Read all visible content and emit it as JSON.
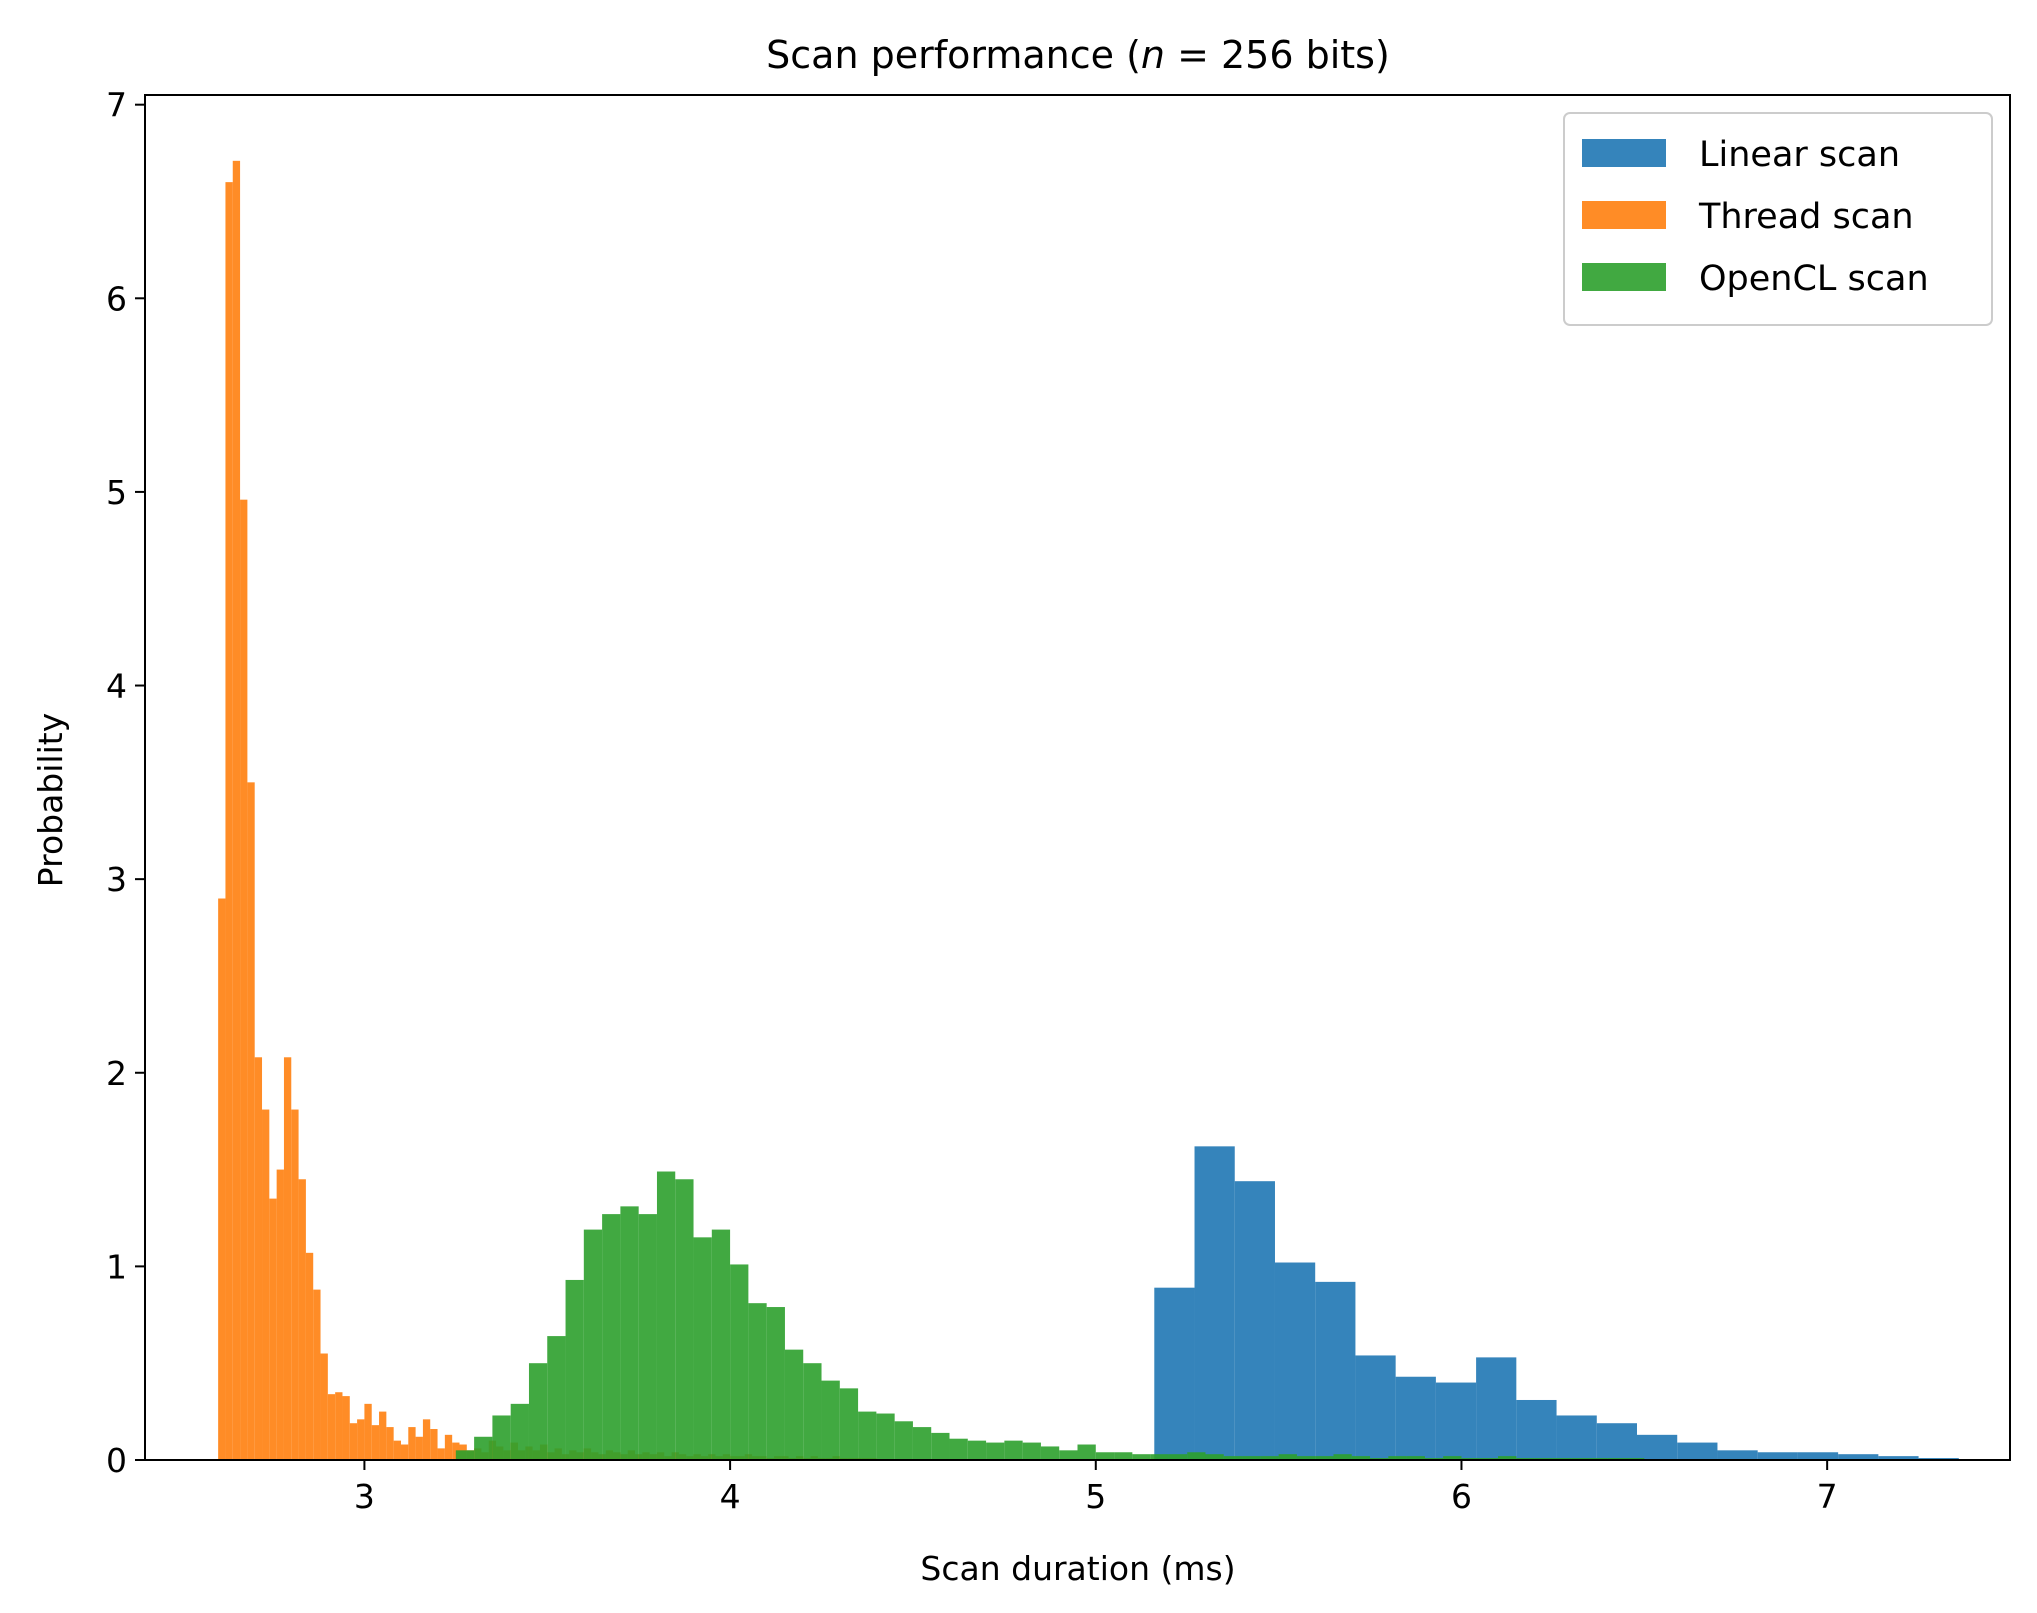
{
  "chart_data": {
    "type": "histogram",
    "title": "Scan performance (n = 256 bits)",
    "title_parts": {
      "prefix": "Scan performance (",
      "variable": "n",
      "suffix": " = 256 bits)"
    },
    "xlabel": "Scan duration (ms)",
    "ylabel": "Probability",
    "xlim": [
      2.4,
      7.5
    ],
    "ylim": [
      0,
      7.05
    ],
    "xticks": [
      3,
      4,
      5,
      6,
      7
    ],
    "yticks": [
      0,
      1,
      2,
      3,
      4,
      5,
      6,
      7
    ],
    "grid": false,
    "legend_position": "top-right",
    "series": [
      {
        "name": "Linear scan",
        "color": "#1f77b4",
        "bin_edges": [
          5.16,
          5.27,
          5.38,
          5.49,
          5.6,
          5.71,
          5.82,
          5.93,
          6.04,
          6.15,
          6.26,
          6.37,
          6.48,
          6.59,
          6.7,
          6.81,
          6.92,
          7.03,
          7.14,
          7.25,
          7.36
        ],
        "values": [
          0.89,
          1.62,
          1.44,
          1.02,
          0.92,
          0.54,
          0.43,
          0.4,
          0.53,
          0.31,
          0.23,
          0.19,
          0.13,
          0.09,
          0.05,
          0.04,
          0.04,
          0.03,
          0.02,
          0.01
        ]
      },
      {
        "name": "Thread scan",
        "color": "#ff7f0e",
        "bin_edges": [
          2.6,
          2.62,
          2.64,
          2.66,
          2.68,
          2.7,
          2.72,
          2.74,
          2.76,
          2.78,
          2.8,
          2.82,
          2.84,
          2.86,
          2.88,
          2.9,
          2.92,
          2.94,
          2.96,
          2.98,
          3.0,
          3.02,
          3.04,
          3.06,
          3.08,
          3.1,
          3.12,
          3.14,
          3.16,
          3.18,
          3.2,
          3.22,
          3.24,
          3.26,
          3.28,
          3.3,
          3.32,
          3.34,
          3.36,
          3.38,
          3.4,
          3.42,
          3.44,
          3.46,
          3.48,
          3.5,
          3.52,
          3.54,
          3.56,
          3.58,
          3.6,
          3.62,
          3.64,
          3.66,
          3.68,
          3.7,
          3.72,
          3.74,
          3.76,
          3.78,
          3.8,
          3.82,
          3.84,
          3.86,
          3.88,
          3.9,
          3.92,
          3.94,
          3.96,
          3.98,
          4.0,
          4.02,
          4.04,
          4.06,
          4.08,
          4.1,
          4.12,
          4.14,
          4.16,
          4.18,
          4.2,
          4.22,
          4.24,
          4.26,
          4.28,
          4.3,
          4.32,
          4.34,
          4.36,
          4.38,
          4.4
        ],
        "values": [
          2.9,
          6.6,
          6.71,
          4.96,
          3.5,
          2.08,
          1.81,
          1.35,
          1.5,
          2.08,
          1.81,
          1.45,
          1.07,
          0.88,
          0.55,
          0.34,
          0.35,
          0.33,
          0.19,
          0.21,
          0.29,
          0.18,
          0.25,
          0.17,
          0.1,
          0.08,
          0.17,
          0.12,
          0.21,
          0.16,
          0.06,
          0.13,
          0.09,
          0.08,
          0.05,
          0.06,
          0.04,
          0.1,
          0.07,
          0.05,
          0.09,
          0.05,
          0.07,
          0.05,
          0.08,
          0.04,
          0.06,
          0.03,
          0.05,
          0.04,
          0.06,
          0.04,
          0.03,
          0.05,
          0.04,
          0.03,
          0.05,
          0.03,
          0.04,
          0.03,
          0.04,
          0.02,
          0.04,
          0.03,
          0.02,
          0.03,
          0.02,
          0.03,
          0.02,
          0.03,
          0.02,
          0.02,
          0.03,
          0.02,
          0.02,
          0.01,
          0.02,
          0.02,
          0.01,
          0.02,
          0.01,
          0.02,
          0.01,
          0.01,
          0.02,
          0.01,
          0.01,
          0.01,
          0.01,
          0.01
        ]
      },
      {
        "name": "OpenCL scan",
        "color": "#2ca02c",
        "bin_edges": [
          3.25,
          3.3,
          3.35,
          3.4,
          3.45,
          3.5,
          3.55,
          3.6,
          3.65,
          3.7,
          3.75,
          3.8,
          3.85,
          3.9,
          3.95,
          4.0,
          4.05,
          4.1,
          4.15,
          4.2,
          4.25,
          4.3,
          4.35,
          4.4,
          4.45,
          4.5,
          4.55,
          4.6,
          4.65,
          4.7,
          4.75,
          4.8,
          4.85,
          4.9,
          4.95,
          5.0,
          5.05,
          5.1,
          5.15,
          5.2,
          5.25,
          5.3,
          5.35,
          5.4,
          5.45,
          5.5,
          5.55,
          5.6,
          5.65,
          5.7,
          5.75,
          5.8,
          5.85,
          5.9,
          5.95,
          6.0,
          6.05,
          6.1,
          6.15,
          6.2,
          6.25,
          6.3,
          6.35,
          6.4,
          6.45,
          6.5
        ],
        "values": [
          0.05,
          0.12,
          0.23,
          0.29,
          0.5,
          0.64,
          0.93,
          1.19,
          1.27,
          1.31,
          1.27,
          1.49,
          1.45,
          1.15,
          1.19,
          1.01,
          0.81,
          0.79,
          0.57,
          0.5,
          0.41,
          0.37,
          0.25,
          0.24,
          0.2,
          0.17,
          0.14,
          0.11,
          0.1,
          0.09,
          0.1,
          0.09,
          0.07,
          0.05,
          0.08,
          0.04,
          0.04,
          0.03,
          0.03,
          0.03,
          0.04,
          0.03,
          0.02,
          0.02,
          0.02,
          0.03,
          0.02,
          0.02,
          0.03,
          0.02,
          0.01,
          0.02,
          0.02,
          0.01,
          0.02,
          0.01,
          0.01,
          0.02,
          0.01,
          0.01,
          0.01,
          0.01,
          0.01,
          0.01,
          0.01
        ]
      }
    ]
  }
}
